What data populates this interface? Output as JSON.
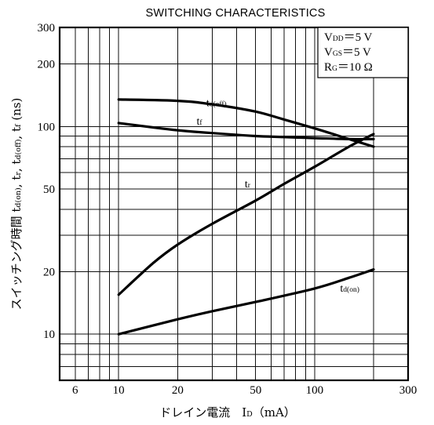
{
  "chart_data": {
    "type": "line",
    "title": "SWITCHING CHARACTERISTICS",
    "xscale": "log",
    "yscale": "log",
    "xlim": [
      5,
      300
    ],
    "ylim": [
      6,
      300
    ],
    "x_ticks": [
      {
        "value": 6,
        "label": "6"
      },
      {
        "value": 10,
        "label": "10"
      },
      {
        "value": 20,
        "label": "20"
      },
      {
        "value": 50,
        "label": "50"
      },
      {
        "value": 100,
        "label": "100"
      },
      {
        "value": 300,
        "label": "300"
      }
    ],
    "y_ticks": [
      {
        "value": 10,
        "label": "10"
      },
      {
        "value": 20,
        "label": "20"
      },
      {
        "value": 50,
        "label": "50"
      },
      {
        "value": 100,
        "label": "100"
      },
      {
        "value": 200,
        "label": "200"
      },
      {
        "value": 300,
        "label": "300"
      }
    ],
    "x_grid": [
      6,
      7,
      8,
      9,
      10,
      20,
      30,
      40,
      50,
      60,
      70,
      80,
      90,
      100,
      200,
      300
    ],
    "y_grid": [
      6,
      7,
      8,
      9,
      10,
      20,
      30,
      40,
      50,
      60,
      70,
      80,
      90,
      100,
      200,
      300
    ],
    "xlabel": {
      "main": "ドレイン電流　I",
      "sub": "D",
      "unit": "（mA）"
    },
    "ylabel": {
      "main": "スイッチング時間",
      "symbols": [
        {
          "t": "t",
          "s": "d(on)"
        },
        {
          "t": ", t",
          "s": "r"
        },
        {
          "t": ", t",
          "s": "d(off)"
        },
        {
          "t": ", t",
          "s": "f"
        },
        {
          "t": "  (ns)",
          "s": ""
        }
      ]
    },
    "conditions": [
      {
        "main": "V",
        "sub": "DD",
        "rest": "＝5 V"
      },
      {
        "main": "V",
        "sub": "GS",
        "rest": "＝5 V"
      },
      {
        "main": "R",
        "sub": "G",
        "rest": "＝10 Ω"
      }
    ],
    "series": [
      {
        "name": "t",
        "name_sub": "d(off)",
        "label_at": [
          28,
          125
        ],
        "x": [
          10,
          20,
          30,
          50,
          70,
          100,
          150,
          200
        ],
        "y": [
          135,
          133,
          128,
          118,
          108,
          98,
          87,
          80
        ]
      },
      {
        "name": "t",
        "name_sub": "f",
        "label_at": [
          25,
          102
        ],
        "x": [
          10,
          15,
          20,
          30,
          50,
          70,
          100,
          150,
          200
        ],
        "y": [
          104,
          99,
          96,
          93,
          90,
          89,
          88,
          87,
          87
        ]
      },
      {
        "name": "t",
        "name_sub": "r",
        "label_at": [
          44,
          51
        ],
        "x": [
          10,
          15,
          20,
          30,
          50,
          70,
          100,
          150,
          200
        ],
        "y": [
          15.5,
          22,
          27,
          34,
          44,
          53,
          64,
          80,
          92
        ]
      },
      {
        "name": "t",
        "name_sub": "d(on)",
        "label_at": [
          135,
          16
        ],
        "x": [
          10,
          20,
          30,
          50,
          100,
          150,
          200
        ],
        "y": [
          10,
          11.8,
          12.9,
          14.3,
          16.6,
          18.7,
          20.5
        ]
      }
    ]
  }
}
